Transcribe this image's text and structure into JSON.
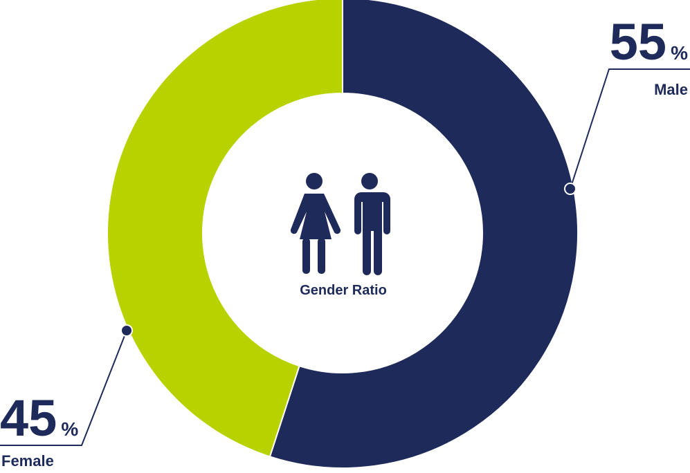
{
  "chart_data": {
    "type": "pie",
    "donut": true,
    "center_label": "Gender Ratio",
    "center_icon": "male-female-people-icon",
    "slices": [
      {
        "label": "Male",
        "value": 55,
        "display": "55",
        "unit": "%",
        "color": "#1e2a5a"
      },
      {
        "label": "Female",
        "value": 45,
        "display": "45",
        "unit": "%",
        "color": "#b8d200"
      }
    ]
  }
}
